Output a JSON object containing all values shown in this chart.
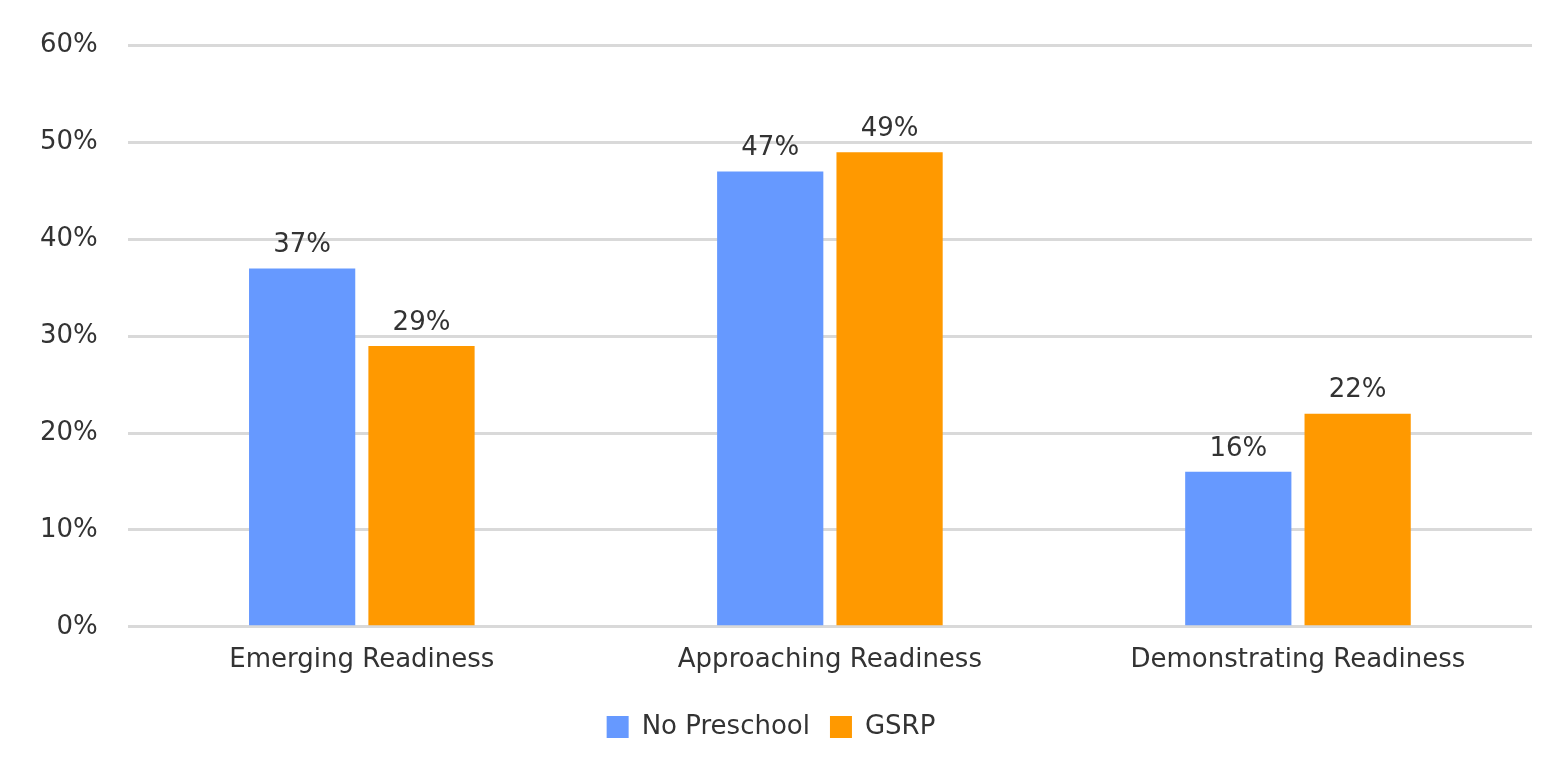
{
  "chart_data": {
    "type": "bar",
    "categories": [
      "Emerging Readiness",
      "Approaching Readiness",
      "Demonstrating Readiness"
    ],
    "series": [
      {
        "name": "No Preschool",
        "color": "#6699ff",
        "values": [
          37,
          47,
          16
        ],
        "value_labels": [
          "37%",
          "47%",
          "16%"
        ]
      },
      {
        "name": "GSRP",
        "color": "#ff9900",
        "values": [
          29,
          49,
          22
        ],
        "value_labels": [
          "29%",
          "49%",
          "22%"
        ]
      }
    ],
    "ylim": [
      0,
      60
    ],
    "yticks": [
      {
        "value": 0,
        "label": "0%"
      },
      {
        "value": 10,
        "label": "10%"
      },
      {
        "value": 20,
        "label": "20%"
      },
      {
        "value": 30,
        "label": "30%"
      },
      {
        "value": 40,
        "label": "40%"
      },
      {
        "value": 50,
        "label": "50%"
      },
      {
        "value": 60,
        "label": "60%"
      }
    ],
    "grid": "y",
    "legend": "bottom"
  }
}
